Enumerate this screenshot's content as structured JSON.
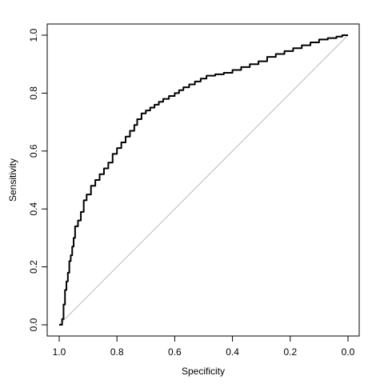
{
  "chart_data": {
    "type": "line",
    "title": "",
    "xlabel": "Specificity",
    "ylabel": "Sensitivity",
    "x_reversed": true,
    "xlim": [
      1.0,
      0.0
    ],
    "ylim": [
      0.0,
      1.0
    ],
    "x_ticks": [
      "1.0",
      "0.8",
      "0.6",
      "0.4",
      "0.2",
      "0.0"
    ],
    "y_ticks": [
      "0.0",
      "0.2",
      "0.4",
      "0.6",
      "0.8",
      "1.0"
    ],
    "grid": false,
    "legend": "none",
    "reference_line": {
      "from": [
        1.0,
        0.0
      ],
      "to": [
        0.0,
        1.0
      ],
      "color": "#bbbbbb"
    },
    "series": [
      {
        "color": "#000000",
        "points": [
          [
            1.0,
            0.0
          ],
          [
            0.995,
            0.0
          ],
          [
            0.99,
            0.02
          ],
          [
            0.985,
            0.07
          ],
          [
            0.98,
            0.12
          ],
          [
            0.975,
            0.15
          ],
          [
            0.97,
            0.18
          ],
          [
            0.965,
            0.22
          ],
          [
            0.96,
            0.24
          ],
          [
            0.955,
            0.27
          ],
          [
            0.95,
            0.3
          ],
          [
            0.945,
            0.34
          ],
          [
            0.935,
            0.36
          ],
          [
            0.925,
            0.39
          ],
          [
            0.915,
            0.43
          ],
          [
            0.905,
            0.45
          ],
          [
            0.89,
            0.48
          ],
          [
            0.875,
            0.5
          ],
          [
            0.86,
            0.52
          ],
          [
            0.845,
            0.54
          ],
          [
            0.83,
            0.56
          ],
          [
            0.815,
            0.59
          ],
          [
            0.8,
            0.61
          ],
          [
            0.785,
            0.63
          ],
          [
            0.77,
            0.65
          ],
          [
            0.755,
            0.67
          ],
          [
            0.74,
            0.69
          ],
          [
            0.73,
            0.71
          ],
          [
            0.715,
            0.73
          ],
          [
            0.7,
            0.74
          ],
          [
            0.685,
            0.75
          ],
          [
            0.67,
            0.76
          ],
          [
            0.655,
            0.77
          ],
          [
            0.64,
            0.78
          ],
          [
            0.62,
            0.79
          ],
          [
            0.6,
            0.8
          ],
          [
            0.585,
            0.81
          ],
          [
            0.57,
            0.82
          ],
          [
            0.55,
            0.83
          ],
          [
            0.53,
            0.84
          ],
          [
            0.51,
            0.85
          ],
          [
            0.49,
            0.86
          ],
          [
            0.46,
            0.865
          ],
          [
            0.43,
            0.87
          ],
          [
            0.4,
            0.88
          ],
          [
            0.37,
            0.89
          ],
          [
            0.34,
            0.9
          ],
          [
            0.31,
            0.91
          ],
          [
            0.28,
            0.925
          ],
          [
            0.25,
            0.935
          ],
          [
            0.22,
            0.945
          ],
          [
            0.19,
            0.955
          ],
          [
            0.16,
            0.965
          ],
          [
            0.13,
            0.975
          ],
          [
            0.1,
            0.985
          ],
          [
            0.07,
            0.99
          ],
          [
            0.04,
            0.995
          ],
          [
            0.02,
            1.0
          ],
          [
            0.0,
            1.0
          ]
        ]
      }
    ]
  }
}
